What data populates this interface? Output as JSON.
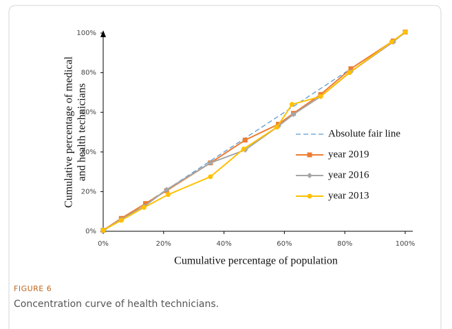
{
  "chart_data": {
    "type": "line",
    "xlabel": "Cumulative percentage of population",
    "ylabel": [
      "Cumulative percentage of medical",
      "and health technicians"
    ],
    "figure_label": "FIGURE 6",
    "caption": "Concentration curve of health technicians.",
    "xlim": [
      0,
      100
    ],
    "ylim": [
      0,
      100
    ],
    "xticks": [
      {
        "value": 0,
        "label": "0%"
      },
      {
        "value": 20,
        "label": "20%"
      },
      {
        "value": 40,
        "label": "40%"
      },
      {
        "value": 60,
        "label": "60%"
      },
      {
        "value": 80,
        "label": "80%"
      },
      {
        "value": 100,
        "label": "100%"
      }
    ],
    "yticks": [
      {
        "value": 0,
        "label": "0%"
      },
      {
        "value": 20,
        "label": "20%"
      },
      {
        "value": 40,
        "label": "40%"
      },
      {
        "value": 60,
        "label": "60%"
      },
      {
        "value": 80,
        "label": "80%"
      },
      {
        "value": 100,
        "label": "100%"
      }
    ],
    "legend": "right",
    "series": [
      {
        "name": "Absolute fair line",
        "color": "#5b9bd5",
        "dash": true,
        "marker": "none",
        "x": [
          0,
          100
        ],
        "values": [
          0,
          100
        ]
      },
      {
        "name": "year 2019",
        "color": "#ed7d31",
        "marker": "square",
        "x": [
          0,
          6,
          14,
          21,
          35.5,
          47,
          58,
          63,
          72,
          82,
          96,
          100
        ],
        "values": [
          0.5,
          6.5,
          14,
          20.5,
          34.5,
          46,
          54,
          59.5,
          69,
          82,
          96,
          100.5
        ]
      },
      {
        "name": "year 2016",
        "color": "#a5a5a5",
        "marker": "diamond",
        "x": [
          0,
          6,
          13.5,
          21,
          35.5,
          47,
          58,
          63,
          72,
          82,
          96,
          100
        ],
        "values": [
          0.5,
          6,
          12.5,
          21,
          34.5,
          41,
          53,
          59,
          68,
          80.5,
          95.5,
          100.5
        ]
      },
      {
        "name": "year 2013",
        "color": "#ffc000",
        "marker": "circle",
        "x": [
          0,
          6,
          13.5,
          21.5,
          35.5,
          46.5,
          57.5,
          62.5,
          72,
          81.5,
          95.5,
          100
        ],
        "values": [
          0.5,
          5.5,
          12,
          18.5,
          27.5,
          41.5,
          52.5,
          64,
          68,
          80,
          95.5,
          100.5
        ]
      }
    ]
  }
}
